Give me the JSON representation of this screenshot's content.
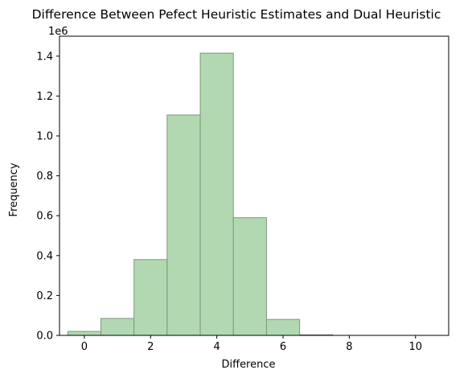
{
  "chart_data": {
    "type": "bar",
    "title": "Difference Between Pefect Heuristic Estimates and Dual Heuristic",
    "xlabel": "Difference",
    "ylabel": "Frequency",
    "y_offset_label": "1e6",
    "xlim": [
      -0.75,
      11.0
    ],
    "ylim": [
      0,
      1500000
    ],
    "x_ticks": [
      0,
      2,
      4,
      6,
      8,
      10
    ],
    "x_tick_labels": [
      "0",
      "2",
      "4",
      "6",
      "8",
      "10"
    ],
    "y_ticks": [
      0,
      200000,
      400000,
      600000,
      800000,
      1000000,
      1200000,
      1400000
    ],
    "y_tick_labels": [
      "0.0",
      "0.2",
      "0.4",
      "0.6",
      "0.8",
      "1.0",
      "1.2",
      "1.4"
    ],
    "bin_edges": [
      -0.5,
      0.5,
      1.5,
      2.5,
      3.5,
      4.5,
      5.5,
      6.5,
      7.5,
      8.5,
      9.5,
      10.5
    ],
    "values": [
      20000,
      85000,
      380000,
      1105000,
      1415000,
      590000,
      80000,
      3000,
      0,
      0,
      0
    ],
    "bar_color": "#b2d8b2",
    "bar_edge_color": "#7f957f",
    "grid": false,
    "legend": "none"
  }
}
